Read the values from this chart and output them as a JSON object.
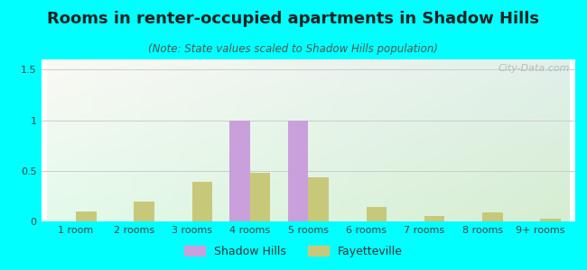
{
  "title": "Rooms in renter-occupied apartments in Shadow Hills",
  "subtitle": "(Note: State values scaled to Shadow Hills population)",
  "categories": [
    "1 room",
    "2 rooms",
    "3 rooms",
    "4 rooms",
    "5 rooms",
    "6 rooms",
    "7 rooms",
    "8 rooms",
    "9+ rooms"
  ],
  "shadow_hills": [
    0,
    0,
    0,
    1.0,
    1.0,
    0,
    0,
    0,
    0
  ],
  "fayetteville": [
    0.1,
    0.2,
    0.39,
    0.48,
    0.44,
    0.14,
    0.055,
    0.085,
    0.025
  ],
  "shadow_hills_color": "#c9a0dc",
  "fayetteville_color": "#c8c87a",
  "bar_width": 0.35,
  "ylim": [
    0,
    1.6
  ],
  "yticks": [
    0,
    0.5,
    1,
    1.5
  ],
  "background_color": "#00ffff",
  "grid_color": "#cccccc",
  "title_fontsize": 13,
  "subtitle_fontsize": 8.5,
  "tick_fontsize": 8,
  "legend_fontsize": 9,
  "watermark": "City-Data.com"
}
